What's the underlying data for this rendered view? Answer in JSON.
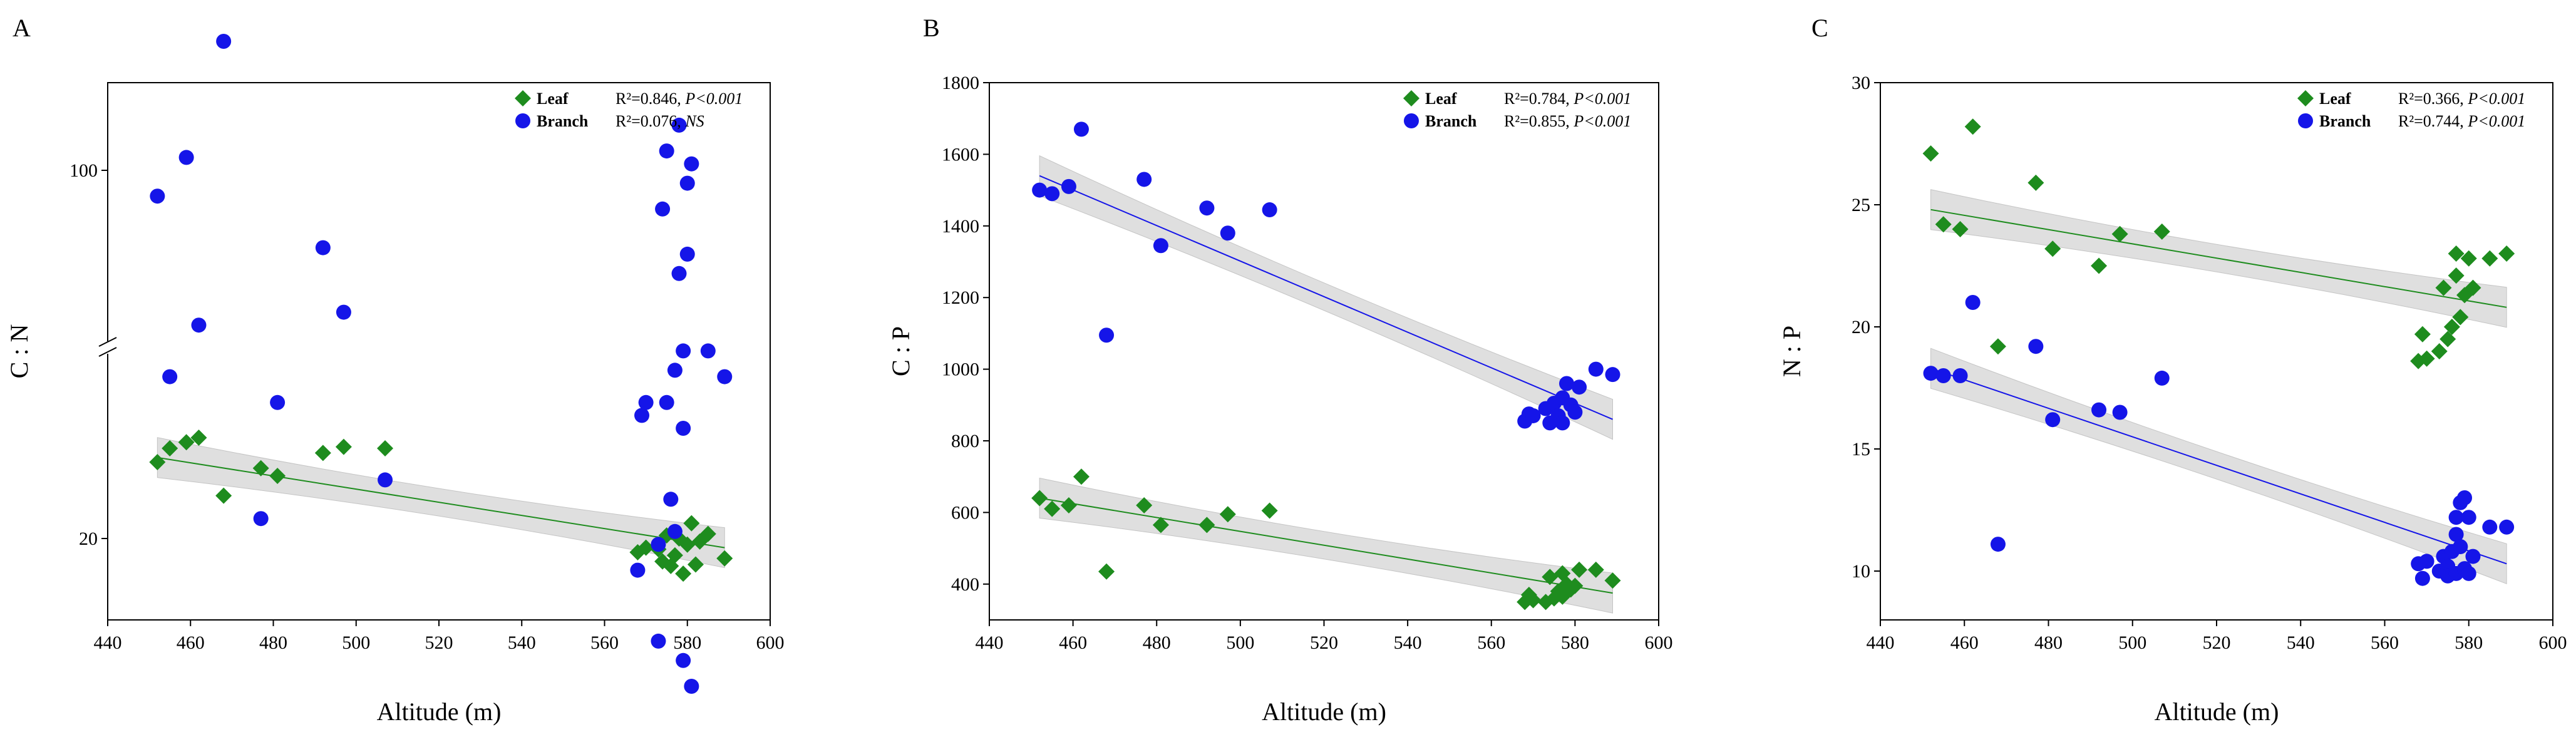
{
  "chart_data": [
    {
      "panel": "A",
      "type": "scatter",
      "xlabel": "Altitude (m)",
      "ylabel": "C : N",
      "xlim": [
        440,
        600
      ],
      "xticks": [
        440,
        460,
        480,
        500,
        520,
        540,
        560,
        580,
        600
      ],
      "y_axis_break": true,
      "yticks": [
        20,
        100
      ],
      "ytick_labels": [
        "20",
        "100"
      ],
      "legend_position": "top-right",
      "series": [
        {
          "name": "Leaf",
          "marker": "diamond",
          "color": "#1e8c1e",
          "stat": "R²=0.846, P<0.001",
          "stat_prefix": "R²=0.846, ",
          "stat_p": "P<0.001",
          "fit": {
            "x": [
              452,
              589
            ],
            "y": [
              25.3,
              19.4
            ]
          },
          "points": [
            [
              452,
              25.0
            ],
            [
              455,
              25.9
            ],
            [
              459,
              26.3
            ],
            [
              462,
              26.6
            ],
            [
              468,
              22.8
            ],
            [
              477,
              24.6
            ],
            [
              481,
              24.1
            ],
            [
              492,
              25.6
            ],
            [
              497,
              26.0
            ],
            [
              507,
              25.9
            ],
            [
              568,
              19.1
            ],
            [
              570,
              19.4
            ],
            [
              573,
              19.3
            ],
            [
              574,
              18.5
            ],
            [
              575,
              20.2
            ],
            [
              576,
              18.2
            ],
            [
              577,
              18.9
            ],
            [
              578,
              20.0
            ],
            [
              579,
              17.7
            ],
            [
              580,
              19.6
            ],
            [
              581,
              21.0
            ],
            [
              582,
              18.3
            ],
            [
              583,
              19.8
            ],
            [
              585,
              20.3
            ],
            [
              589,
              18.7
            ]
          ]
        },
        {
          "name": "Branch",
          "marker": "circle",
          "color": "#1515e8",
          "stat": "R²=0.076, NS",
          "stat_prefix": "R²=0.076, ",
          "stat_p": "NS",
          "points": [
            [
              452,
              98.0
            ],
            [
              455,
              84.0
            ],
            [
              459,
              101.0
            ],
            [
              462,
              88.0
            ],
            [
              468,
              110.0
            ],
            [
              477,
              73.0
            ],
            [
              481,
              82.0
            ],
            [
              492,
              94.0
            ],
            [
              497,
              89.0
            ],
            [
              507,
              76.0
            ],
            [
              568,
              69.0
            ],
            [
              569,
              81.0
            ],
            [
              570,
              82.0
            ],
            [
              573,
              63.5
            ],
            [
              573,
              71.0
            ],
            [
              574,
              97.0
            ],
            [
              575,
              101.5
            ],
            [
              575,
              82.0
            ],
            [
              576,
              74.5
            ],
            [
              577,
              72.0
            ],
            [
              577,
              84.5
            ],
            [
              578,
              103.5
            ],
            [
              578,
              92.0
            ],
            [
              579,
              86.0
            ],
            [
              579,
              80.0
            ],
            [
              579,
              62.0
            ],
            [
              580,
              93.5
            ],
            [
              580,
              99.0
            ],
            [
              581,
              100.5
            ],
            [
              581,
              60.0
            ],
            [
              585,
              86.0
            ],
            [
              589,
              84.0
            ]
          ]
        }
      ]
    },
    {
      "panel": "B",
      "type": "scatter",
      "xlabel": "Altitude (m)",
      "ylabel": "C : P",
      "xlim": [
        440,
        600
      ],
      "ylim": [
        300,
        1800
      ],
      "xticks": [
        440,
        460,
        480,
        500,
        520,
        540,
        560,
        580,
        600
      ],
      "yticks": [
        400,
        600,
        800,
        1000,
        1200,
        1400,
        1600,
        1800
      ],
      "legend_position": "top-right",
      "series": [
        {
          "name": "Leaf",
          "marker": "diamond",
          "color": "#1e8c1e",
          "stat": "R²=0.784, P<0.001",
          "stat_prefix": "R²=0.784, ",
          "stat_p": "P<0.001",
          "fit": {
            "x": [
              452,
              589
            ],
            "y": [
              640,
              375
            ]
          },
          "points": [
            [
              452,
              640
            ],
            [
              455,
              610
            ],
            [
              459,
              620
            ],
            [
              462,
              700
            ],
            [
              468,
              435
            ],
            [
              477,
              620
            ],
            [
              481,
              565
            ],
            [
              492,
              565
            ],
            [
              497,
              595
            ],
            [
              507,
              605
            ],
            [
              568,
              350
            ],
            [
              569,
              370
            ],
            [
              570,
              355
            ],
            [
              573,
              350
            ],
            [
              574,
              420
            ],
            [
              575,
              360
            ],
            [
              576,
              380
            ],
            [
              577,
              365
            ],
            [
              577,
              430
            ],
            [
              578,
              400
            ],
            [
              579,
              385
            ],
            [
              580,
              395
            ],
            [
              581,
              440
            ],
            [
              585,
              440
            ],
            [
              589,
              410
            ]
          ]
        },
        {
          "name": "Branch",
          "marker": "circle",
          "color": "#1515e8",
          "stat": "R²=0.855, P<0.001",
          "stat_prefix": "R²=0.855, ",
          "stat_p": "P<0.001",
          "fit": {
            "x": [
              452,
              589
            ],
            "y": [
              1540,
              860
            ]
          },
          "points": [
            [
              452,
              1500
            ],
            [
              455,
              1490
            ],
            [
              459,
              1510
            ],
            [
              462,
              1670
            ],
            [
              468,
              1095
            ],
            [
              477,
              1530
            ],
            [
              481,
              1345
            ],
            [
              492,
              1450
            ],
            [
              497,
              1380
            ],
            [
              507,
              1445
            ],
            [
              568,
              855
            ],
            [
              569,
              875
            ],
            [
              570,
              870
            ],
            [
              573,
              890
            ],
            [
              574,
              850
            ],
            [
              575,
              905
            ],
            [
              576,
              870
            ],
            [
              577,
              850
            ],
            [
              577,
              920
            ],
            [
              578,
              960
            ],
            [
              579,
              900
            ],
            [
              580,
              880
            ],
            [
              581,
              950
            ],
            [
              585,
              1000
            ],
            [
              589,
              985
            ]
          ]
        }
      ]
    },
    {
      "panel": "C",
      "type": "scatter",
      "xlabel": "Altitude (m)",
      "ylabel": "N : P",
      "xlim": [
        440,
        600
      ],
      "ylim": [
        8,
        30
      ],
      "xticks": [
        440,
        460,
        480,
        500,
        520,
        540,
        560,
        580,
        600
      ],
      "yticks": [
        10,
        15,
        20,
        25,
        30
      ],
      "legend_position": "top-right",
      "series": [
        {
          "name": "Leaf",
          "marker": "diamond",
          "color": "#1e8c1e",
          "stat": "R²=0.366, P<0.001",
          "stat_prefix": "R²=0.366, ",
          "stat_p": "P<0.001",
          "fit": {
            "x": [
              452,
              589
            ],
            "y": [
              24.8,
              20.8
            ]
          },
          "points": [
            [
              452,
              27.1
            ],
            [
              455,
              24.2
            ],
            [
              459,
              24.0
            ],
            [
              462,
              28.2
            ],
            [
              468,
              19.2
            ],
            [
              477,
              25.9
            ],
            [
              481,
              23.2
            ],
            [
              492,
              22.5
            ],
            [
              497,
              23.8
            ],
            [
              507,
              23.9
            ],
            [
              568,
              18.6
            ],
            [
              569,
              19.7
            ],
            [
              570,
              18.7
            ],
            [
              573,
              19.0
            ],
            [
              574,
              21.6
            ],
            [
              575,
              19.5
            ],
            [
              576,
              20.0
            ],
            [
              577,
              22.1
            ],
            [
              577,
              23.0
            ],
            [
              578,
              20.4
            ],
            [
              579,
              21.3
            ],
            [
              580,
              22.8
            ],
            [
              581,
              21.6
            ],
            [
              585,
              22.8
            ],
            [
              589,
              23.0
            ]
          ]
        },
        {
          "name": "Branch",
          "marker": "circle",
          "color": "#1515e8",
          "stat": "R²=0.744, P<0.001",
          "stat_prefix": "R²=0.744, ",
          "stat_p": "P<0.001",
          "fit": {
            "x": [
              452,
              589
            ],
            "y": [
              18.3,
              10.3
            ]
          },
          "points": [
            [
              452,
              18.1
            ],
            [
              455,
              18.0
            ],
            [
              459,
              18.0
            ],
            [
              462,
              21.0
            ],
            [
              468,
              11.1
            ],
            [
              477,
              19.2
            ],
            [
              481,
              16.2
            ],
            [
              492,
              16.6
            ],
            [
              497,
              16.5
            ],
            [
              507,
              17.9
            ],
            [
              568,
              10.3
            ],
            [
              569,
              9.7
            ],
            [
              570,
              10.4
            ],
            [
              573,
              10.0
            ],
            [
              574,
              10.6
            ],
            [
              575,
              10.2
            ],
            [
              575,
              9.8
            ],
            [
              576,
              10.8
            ],
            [
              577,
              9.9
            ],
            [
              577,
              11.5
            ],
            [
              577,
              12.2
            ],
            [
              578,
              12.8
            ],
            [
              578,
              11.0
            ],
            [
              579,
              13.0
            ],
            [
              579,
              10.1
            ],
            [
              580,
              9.9
            ],
            [
              580,
              12.2
            ],
            [
              581,
              10.6
            ],
            [
              585,
              11.8
            ],
            [
              589,
              11.8
            ]
          ]
        }
      ]
    }
  ]
}
